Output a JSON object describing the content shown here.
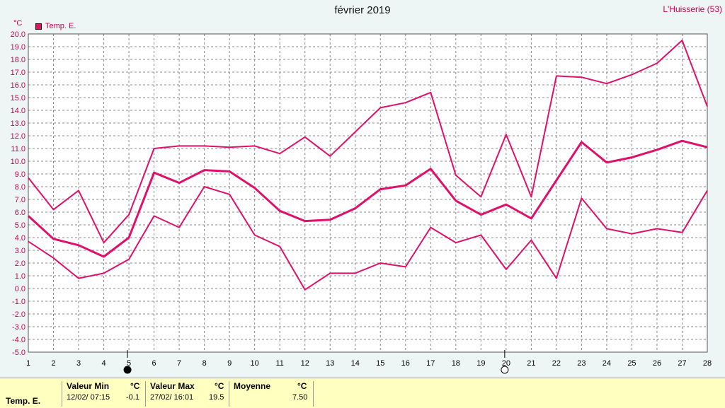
{
  "title": "février 2019",
  "station": "L'Huisserie (53)",
  "unit": "°C",
  "legend_label": "Temp. E.",
  "colors": {
    "series": "#e0106a",
    "grid": "#8a8a8a",
    "axis_text": "#d0004a",
    "plot_bg": "#ffffff"
  },
  "moon_icons": [
    {
      "name": "new-moon-icon",
      "day": 5
    },
    {
      "name": "full-moon-icon",
      "day": 20
    }
  ],
  "footer": {
    "series_label": "Temp. E.",
    "min": {
      "label": "Valeur Min",
      "unit": "°C",
      "datetime": "12/02/  07:15",
      "value": "-0.1"
    },
    "max": {
      "label": "Valeur Max",
      "unit": "°C",
      "datetime": "27/02/  16:01",
      "value": "19.5"
    },
    "mean": {
      "label": "Moyenne",
      "unit": "°C",
      "value": "7.50"
    }
  },
  "chart_data": {
    "type": "line",
    "title": "février 2019",
    "xlabel": "",
    "ylabel": "°C",
    "x": [
      1,
      2,
      3,
      4,
      5,
      6,
      7,
      8,
      9,
      10,
      11,
      12,
      13,
      14,
      15,
      16,
      17,
      18,
      19,
      20,
      21,
      22,
      23,
      24,
      25,
      26,
      27,
      28
    ],
    "xlim": [
      1,
      28
    ],
    "ylim": [
      -5,
      20
    ],
    "ytick_step": 1,
    "grid": true,
    "legend": "top-left",
    "series": [
      {
        "name": "Temp. E.",
        "role": "max",
        "width": 2,
        "values": [
          8.7,
          6.2,
          7.7,
          3.6,
          5.8,
          11.0,
          11.2,
          11.2,
          11.1,
          11.2,
          10.6,
          11.9,
          10.4,
          12.3,
          14.2,
          14.6,
          15.4,
          8.9,
          7.2,
          12.1,
          7.2,
          16.7,
          16.6,
          16.1,
          16.8,
          17.7,
          19.5,
          14.3
        ]
      },
      {
        "name": "Temp. E.",
        "role": "mean",
        "width": 3,
        "values": [
          5.7,
          3.9,
          3.4,
          2.5,
          4.0,
          9.1,
          8.3,
          9.3,
          9.2,
          7.9,
          6.1,
          5.3,
          5.4,
          6.3,
          7.8,
          8.1,
          9.4,
          6.9,
          5.8,
          6.6,
          5.5,
          8.5,
          11.5,
          9.9,
          10.3,
          10.9,
          11.6,
          11.1
        ]
      },
      {
        "name": "Temp. E.",
        "role": "min",
        "width": 2,
        "values": [
          3.7,
          2.4,
          0.8,
          1.2,
          2.3,
          5.7,
          4.8,
          8.0,
          7.4,
          4.2,
          3.3,
          -0.1,
          1.2,
          1.2,
          2.0,
          1.7,
          4.8,
          3.6,
          4.2,
          1.5,
          3.8,
          0.8,
          7.1,
          4.7,
          4.3,
          4.7,
          4.4,
          7.7
        ]
      }
    ]
  }
}
